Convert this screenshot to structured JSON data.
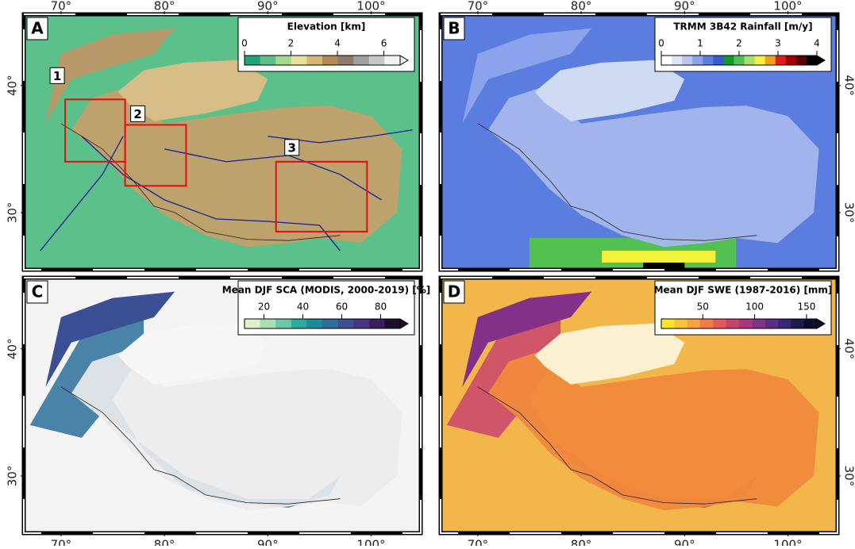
{
  "map": {
    "xlim": [
      66.4,
      104.8
    ],
    "ylim": [
      25.5,
      45.6
    ],
    "lon_ticks": [
      {
        "value": 70,
        "label": "70°"
      },
      {
        "value": 80,
        "label": "80°"
      },
      {
        "value": 90,
        "label": "90°"
      },
      {
        "value": 100,
        "label": "100°"
      }
    ],
    "lat_ticks": [
      {
        "value": 30,
        "label": "30°"
      },
      {
        "value": 40,
        "label": "40°"
      }
    ],
    "panels": [
      {
        "letter": "A",
        "colorbar": {
          "title": "Elevation [km]",
          "range": [
            0,
            6.7
          ],
          "ticks": [
            0,
            2,
            4,
            6
          ],
          "colors": [
            "#1fa37a",
            "#5cc08a",
            "#a6d98a",
            "#e7e0a0",
            "#d6b875",
            "#b38a55",
            "#8f7a6a",
            "#a0a0a0",
            "#c8c8c8",
            "#f2f2f2"
          ]
        },
        "regions": [
          "1",
          "2",
          "3"
        ]
      },
      {
        "letter": "B",
        "colorbar": {
          "title": "TRMM 3B42 Rainfall [m/y]",
          "range": [
            0,
            4
          ],
          "ticks": [
            0,
            1,
            2,
            3,
            4
          ],
          "colors": [
            "#ffffff",
            "#dfe6f7",
            "#b9c8f0",
            "#8aa3ea",
            "#5b7de0",
            "#3a5bd6",
            "#0f9a2a",
            "#52c152",
            "#a8e06a",
            "#f2f23a",
            "#f2a01a",
            "#e11a1a",
            "#a00000",
            "#5a0000",
            "#000000"
          ]
        }
      },
      {
        "letter": "C",
        "colorbar": {
          "title": "Mean DJF SCA (MODIS, 2000-2019) [%]",
          "range": [
            10,
            90
          ],
          "ticks": [
            20,
            40,
            60,
            80
          ],
          "colors": [
            "#dff2c8",
            "#a8dfb0",
            "#6cc8a8",
            "#2ea9a0",
            "#1d8a9b",
            "#2a6e9a",
            "#3b4f94",
            "#4a3585",
            "#3a1f5e",
            "#1e0f30"
          ]
        }
      },
      {
        "letter": "D",
        "colorbar": {
          "title": "Mean DJF SWE (1987-2016) [mm]",
          "range": [
            10,
            160
          ],
          "ticks": [
            50,
            100,
            150
          ],
          "colors": [
            "#fde725",
            "#fbc33a",
            "#f9a13f",
            "#f37b45",
            "#e45a5a",
            "#c9446d",
            "#a8367d",
            "#833088",
            "#5b2c8a",
            "#3a2677",
            "#1d1a52",
            "#0b0b2a"
          ]
        }
      }
    ]
  }
}
